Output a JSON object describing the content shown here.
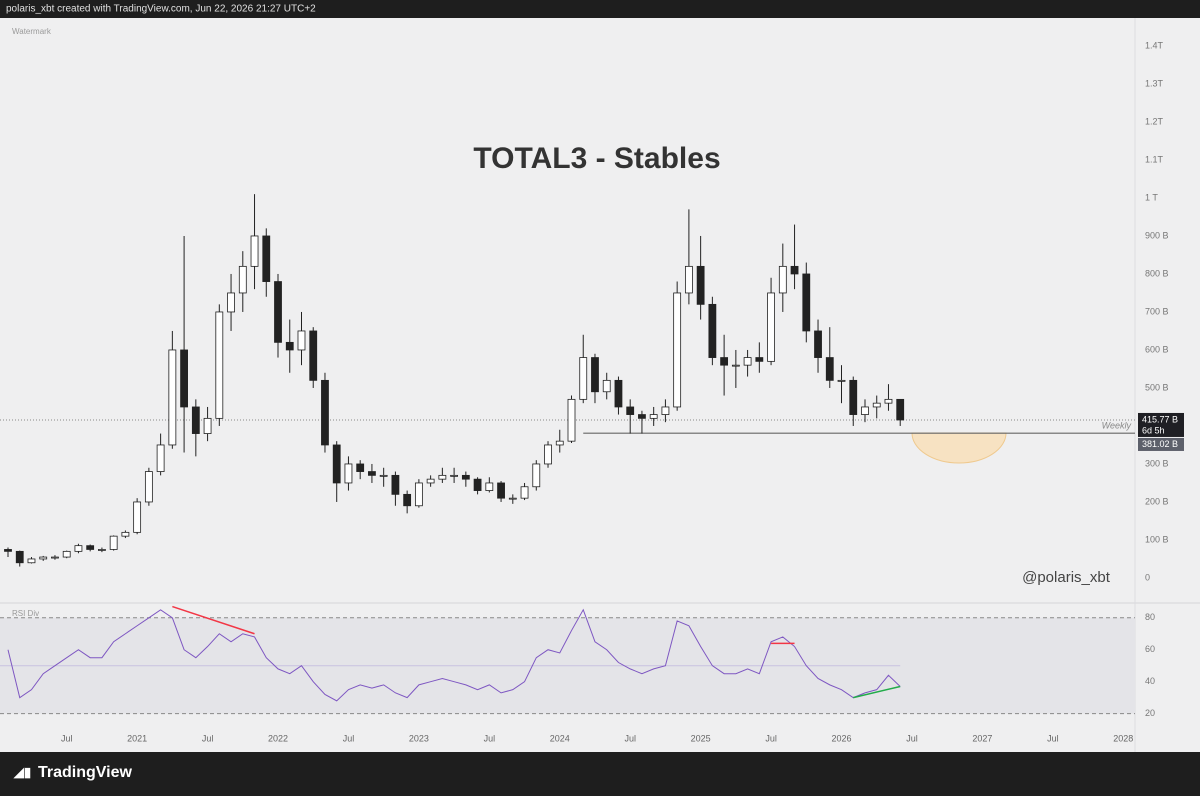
{
  "header": "polaris_xbt created with TradingView.com, Jun 22, 2026 21:27 UTC+2",
  "footer": "TradingView",
  "watermark": "Watermark",
  "handle": "@polaris_xbt",
  "chart_data": [
    {
      "type": "candlestick",
      "title": "TOTAL3 - Stables",
      "x": [
        "2020-02",
        "2020-03",
        "2020-04",
        "2020-05",
        "2020-06",
        "2020-07",
        "2020-08",
        "2020-09",
        "2020-10",
        "2020-11",
        "2020-12",
        "2021-01",
        "2021-02",
        "2021-03",
        "2021-04",
        "2021-05",
        "2021-06",
        "2021-07",
        "2021-08",
        "2021-09",
        "2021-10",
        "2021-11",
        "2021-12",
        "2022-01",
        "2022-02",
        "2022-03",
        "2022-04",
        "2022-05",
        "2022-06",
        "2022-07",
        "2022-08",
        "2022-09",
        "2022-10",
        "2022-11",
        "2022-12",
        "2023-01",
        "2023-02",
        "2023-03",
        "2023-04",
        "2023-05",
        "2023-06",
        "2023-07",
        "2023-08",
        "2023-09",
        "2023-10",
        "2023-11",
        "2023-12",
        "2024-01",
        "2024-02",
        "2024-03",
        "2024-04",
        "2024-05",
        "2024-06",
        "2024-07",
        "2024-08",
        "2024-09",
        "2024-10",
        "2024-11",
        "2024-12",
        "2025-01",
        "2025-02",
        "2025-03",
        "2025-04",
        "2025-05",
        "2025-06",
        "2025-07",
        "2025-08",
        "2025-09",
        "2025-10",
        "2025-11",
        "2025-12",
        "2026-01",
        "2026-02",
        "2026-03",
        "2026-04",
        "2026-05",
        "2026-06"
      ],
      "open": [
        75,
        70,
        40,
        50,
        55,
        55,
        70,
        85,
        75,
        75,
        110,
        120,
        200,
        280,
        350,
        600,
        450,
        380,
        420,
        700,
        750,
        820,
        900,
        780,
        620,
        600,
        650,
        520,
        350,
        250,
        300,
        280,
        270,
        270,
        220,
        190,
        250,
        260,
        270,
        270,
        260,
        230,
        250,
        210,
        210,
        240,
        300,
        350,
        360,
        470,
        580,
        490,
        520,
        450,
        430,
        420,
        430,
        450,
        750,
        820,
        720,
        580,
        560,
        560,
        580,
        570,
        750,
        820,
        800,
        650,
        580,
        520,
        520,
        430,
        450,
        460,
        470
      ],
      "high": [
        80,
        72,
        55,
        58,
        60,
        72,
        90,
        88,
        80,
        112,
        125,
        210,
        290,
        380,
        650,
        900,
        470,
        450,
        720,
        800,
        860,
        1010,
        920,
        800,
        680,
        700,
        660,
        540,
        360,
        320,
        310,
        300,
        290,
        280,
        230,
        260,
        270,
        290,
        290,
        280,
        265,
        265,
        255,
        220,
        250,
        310,
        360,
        390,
        480,
        640,
        590,
        540,
        530,
        470,
        440,
        450,
        470,
        780,
        970,
        900,
        740,
        640,
        600,
        600,
        620,
        790,
        880,
        930,
        830,
        680,
        660,
        560,
        530,
        470,
        480,
        510,
        470
      ],
      "low": [
        55,
        30,
        38,
        45,
        48,
        52,
        65,
        70,
        68,
        72,
        105,
        115,
        190,
        270,
        340,
        330,
        320,
        360,
        400,
        650,
        700,
        760,
        740,
        580,
        540,
        560,
        500,
        330,
        200,
        230,
        260,
        250,
        240,
        190,
        170,
        185,
        240,
        250,
        250,
        240,
        220,
        225,
        200,
        195,
        205,
        230,
        290,
        330,
        355,
        460,
        460,
        470,
        430,
        380,
        380,
        400,
        410,
        440,
        720,
        680,
        560,
        480,
        500,
        530,
        540,
        560,
        700,
        760,
        620,
        540,
        500,
        460,
        400,
        410,
        420,
        440,
        400
      ],
      "close": [
        70,
        40,
        50,
        55,
        55,
        70,
        85,
        75,
        75,
        110,
        120,
        200,
        280,
        350,
        600,
        450,
        380,
        420,
        700,
        750,
        820,
        900,
        780,
        620,
        600,
        650,
        520,
        350,
        250,
        300,
        280,
        270,
        270,
        220,
        190,
        250,
        260,
        270,
        270,
        260,
        230,
        250,
        210,
        210,
        240,
        300,
        350,
        360,
        470,
        580,
        490,
        520,
        450,
        430,
        420,
        430,
        450,
        750,
        820,
        720,
        580,
        560,
        560,
        580,
        570,
        750,
        820,
        800,
        650,
        580,
        520,
        520,
        430,
        450,
        460,
        470,
        415.77
      ],
      "up_color": "#ffffff",
      "down_color": "#222222",
      "wick_color": "#222222",
      "xlim": [
        "2020-02",
        "2028-02"
      ],
      "xticks": [
        {
          "value": "2020-07",
          "label": "Jul"
        },
        {
          "value": "2021-01",
          "label": "2021"
        },
        {
          "value": "2021-07",
          "label": "Jul"
        },
        {
          "value": "2022-01",
          "label": "2022"
        },
        {
          "value": "2022-07",
          "label": "Jul"
        },
        {
          "value": "2023-01",
          "label": "2023"
        },
        {
          "value": "2023-07",
          "label": "Jul"
        },
        {
          "value": "2024-01",
          "label": "2024"
        },
        {
          "value": "2024-07",
          "label": "Jul"
        },
        {
          "value": "2025-01",
          "label": "2025"
        },
        {
          "value": "2025-07",
          "label": "Jul"
        },
        {
          "value": "2026-01",
          "label": "2026"
        },
        {
          "value": "2026-07",
          "label": "Jul"
        },
        {
          "value": "2027-01",
          "label": "2027"
        },
        {
          "value": "2027-07",
          "label": "Jul"
        },
        {
          "value": "2028-01",
          "label": "2028"
        }
      ],
      "ylim": [
        -58,
        1442
      ],
      "yticks": [
        0,
        {
          "value": 100,
          "label": "100 B"
        },
        {
          "value": 200,
          "label": "200 B"
        },
        {
          "value": 300,
          "label": "300 B"
        },
        {
          "value": 400,
          "label": "400 B"
        },
        {
          "value": 500,
          "label": "500 B"
        },
        {
          "value": 600,
          "label": "600 B"
        },
        {
          "value": 700,
          "label": "700 B"
        },
        {
          "value": 800,
          "label": "800 B"
        },
        {
          "value": 900,
          "label": "900 B"
        },
        {
          "value": 1000,
          "label": "1 T"
        },
        {
          "value": 1100,
          "label": "1.1T"
        },
        {
          "value": 1200,
          "label": "1.2T"
        },
        {
          "value": 1300,
          "label": "1.3T"
        },
        {
          "value": 1400,
          "label": "1.4T"
        }
      ],
      "last_price": {
        "value": 415.77,
        "label": "415.77 B"
      },
      "countdown": "6d 5h",
      "interval": "Weekly",
      "support": {
        "value": 381.02,
        "label": "381.02 B",
        "from": "2024-03"
      }
    },
    {
      "type": "line",
      "name": "RSI Div",
      "color": "#7e57c2",
      "x": [
        "2020-02",
        "2020-03",
        "2020-04",
        "2020-05",
        "2020-06",
        "2020-07",
        "2020-08",
        "2020-09",
        "2020-10",
        "2020-11",
        "2020-12",
        "2021-01",
        "2021-02",
        "2021-03",
        "2021-04",
        "2021-05",
        "2021-06",
        "2021-07",
        "2021-08",
        "2021-09",
        "2021-10",
        "2021-11",
        "2021-12",
        "2022-01",
        "2022-02",
        "2022-03",
        "2022-04",
        "2022-05",
        "2022-06",
        "2022-07",
        "2022-08",
        "2022-09",
        "2022-10",
        "2022-11",
        "2022-12",
        "2023-01",
        "2023-02",
        "2023-03",
        "2023-04",
        "2023-05",
        "2023-06",
        "2023-07",
        "2023-08",
        "2023-09",
        "2023-10",
        "2023-11",
        "2023-12",
        "2024-01",
        "2024-02",
        "2024-03",
        "2024-04",
        "2024-05",
        "2024-06",
        "2024-07",
        "2024-08",
        "2024-09",
        "2024-10",
        "2024-11",
        "2024-12",
        "2025-01",
        "2025-02",
        "2025-03",
        "2025-04",
        "2025-05",
        "2025-06",
        "2025-07",
        "2025-08",
        "2025-09",
        "2025-10",
        "2025-11",
        "2025-12",
        "2026-01",
        "2026-02",
        "2026-03",
        "2026-04",
        "2026-05",
        "2026-06"
      ],
      "values": [
        60,
        30,
        35,
        45,
        50,
        55,
        60,
        55,
        55,
        65,
        70,
        75,
        80,
        85,
        80,
        60,
        55,
        62,
        70,
        65,
        70,
        68,
        55,
        48,
        45,
        50,
        40,
        32,
        28,
        35,
        38,
        36,
        38,
        33,
        30,
        38,
        40,
        42,
        40,
        38,
        35,
        38,
        33,
        35,
        40,
        55,
        60,
        58,
        72,
        85,
        65,
        60,
        52,
        48,
        45,
        48,
        50,
        78,
        75,
        62,
        50,
        45,
        45,
        48,
        45,
        65,
        68,
        62,
        50,
        42,
        38,
        35,
        30,
        33,
        35,
        44,
        37
      ],
      "ylim": [
        11,
        88
      ],
      "yticks": [
        20,
        40,
        60,
        80
      ],
      "levels": [
        20,
        50,
        80
      ],
      "divergences": [
        {
          "x": [
            "2021-04",
            "2021-11"
          ],
          "values": [
            87,
            70
          ],
          "color": "#f23645"
        },
        {
          "x": [
            "2025-07",
            "2025-09"
          ],
          "values": [
            64,
            64
          ],
          "color": "#f23645"
        },
        {
          "x": [
            "2026-02",
            "2026-06"
          ],
          "values": [
            30,
            37
          ],
          "color": "#22ab4a"
        }
      ]
    }
  ]
}
